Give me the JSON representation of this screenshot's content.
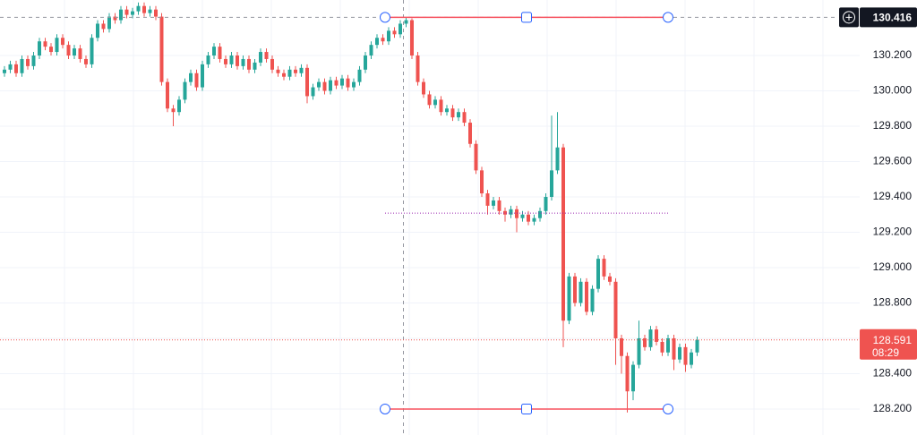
{
  "chart_data": {
    "type": "candlestick",
    "up_color": "#26a69a",
    "down_color": "#ef5350",
    "grid": true,
    "ylim": [
      128.053,
      130.514
    ],
    "yticks": [
      {
        "value": 128.2,
        "label": "128.200"
      },
      {
        "value": 128.4,
        "label": "128.400"
      },
      {
        "value": 128.6,
        "label": "128.600"
      },
      {
        "value": 128.8,
        "label": "128.800"
      },
      {
        "value": 129.0,
        "label": "129.000"
      },
      {
        "value": 129.2,
        "label": "129.200"
      },
      {
        "value": 129.4,
        "label": "129.400"
      },
      {
        "value": 129.6,
        "label": "129.600"
      },
      {
        "value": 129.8,
        "label": "129.800"
      },
      {
        "value": 130.0,
        "label": "130.000"
      },
      {
        "value": 130.2,
        "label": "130.200"
      }
    ],
    "crosshair_price": 130.416,
    "range_low": 128.2,
    "countdown": "08:29",
    "open": [
      130.1,
      130.12,
      130.15,
      130.1,
      130.18,
      130.14,
      130.2,
      130.28,
      130.25,
      130.22,
      130.3,
      130.26,
      130.2,
      130.24,
      130.18,
      130.15,
      130.3,
      130.38,
      130.35,
      130.42,
      130.4,
      130.46,
      130.43,
      130.45,
      130.48,
      130.44,
      130.46,
      130.42,
      130.05,
      129.9,
      129.88,
      129.95,
      130.05,
      130.1,
      130.02,
      130.15,
      130.2,
      130.25,
      130.18,
      130.15,
      130.2,
      130.14,
      130.18,
      130.12,
      130.16,
      130.22,
      130.18,
      130.12,
      130.1,
      130.08,
      130.12,
      130.1,
      130.13,
      129.97,
      130.02,
      130.05,
      130.0,
      130.06,
      130.03,
      130.07,
      130.02,
      130.05,
      130.12,
      130.2,
      130.26,
      130.3,
      130.28,
      130.34,
      130.32,
      130.38,
      130.4,
      130.2,
      130.05,
      129.98,
      129.92,
      129.95,
      129.88,
      129.9,
      129.85,
      129.88,
      129.82,
      129.7,
      129.55,
      129.42,
      129.35,
      129.38,
      129.32,
      129.3,
      129.33,
      129.28,
      129.3,
      129.26,
      129.28,
      129.32,
      129.4,
      129.55,
      129.68,
      128.7,
      128.95,
      128.8,
      128.92,
      128.75,
      128.88,
      129.05,
      128.95,
      128.92,
      128.6,
      128.5,
      128.3,
      128.45,
      128.6,
      128.55,
      128.65,
      128.58,
      128.52,
      128.6,
      128.48,
      128.55,
      128.45,
      128.52
    ],
    "high": [
      130.14,
      130.17,
      130.17,
      130.2,
      130.2,
      130.22,
      130.3,
      130.3,
      130.27,
      130.32,
      130.32,
      130.28,
      130.26,
      130.26,
      130.2,
      130.32,
      130.4,
      130.4,
      130.44,
      130.44,
      130.48,
      130.48,
      130.47,
      130.5,
      130.5,
      130.48,
      130.48,
      130.44,
      130.07,
      129.92,
      129.97,
      130.07,
      130.12,
      130.12,
      130.17,
      130.22,
      130.27,
      130.27,
      130.2,
      130.22,
      130.22,
      130.2,
      130.2,
      130.18,
      130.24,
      130.24,
      130.2,
      130.14,
      130.12,
      130.14,
      130.14,
      130.15,
      130.15,
      130.04,
      130.07,
      130.07,
      130.08,
      130.08,
      130.09,
      130.09,
      130.07,
      130.14,
      130.22,
      130.28,
      130.32,
      130.32,
      130.36,
      130.36,
      130.4,
      130.416,
      130.41,
      130.22,
      130.07,
      130.0,
      129.97,
      129.97,
      129.92,
      129.92,
      129.9,
      129.9,
      129.84,
      129.72,
      129.57,
      129.44,
      129.4,
      129.4,
      129.34,
      129.35,
      129.35,
      129.32,
      129.32,
      129.3,
      129.34,
      129.42,
      129.86,
      129.88,
      129.7,
      128.97,
      128.97,
      128.94,
      128.94,
      128.9,
      129.07,
      129.07,
      128.97,
      128.94,
      128.62,
      128.52,
      128.47,
      128.7,
      128.62,
      128.67,
      128.67,
      128.6,
      128.62,
      128.62,
      128.57,
      128.57,
      128.54,
      128.61
    ],
    "low": [
      130.08,
      130.1,
      130.08,
      130.08,
      130.12,
      130.12,
      130.18,
      130.23,
      130.2,
      130.2,
      130.24,
      130.18,
      130.18,
      130.16,
      130.13,
      130.13,
      130.28,
      130.33,
      130.33,
      130.38,
      130.38,
      130.41,
      130.41,
      130.43,
      130.42,
      130.42,
      130.4,
      130.03,
      129.88,
      129.8,
      129.86,
      129.93,
      130.03,
      130.0,
      130.0,
      130.13,
      130.18,
      130.16,
      130.13,
      130.13,
      130.12,
      130.12,
      130.1,
      130.1,
      130.14,
      130.16,
      130.1,
      130.08,
      130.06,
      130.06,
      130.08,
      130.08,
      129.93,
      129.95,
      130.0,
      129.98,
      129.98,
      130.01,
      130.01,
      130.0,
      130.0,
      130.03,
      130.1,
      130.18,
      130.24,
      130.26,
      130.26,
      130.3,
      130.3,
      130.36,
      130.18,
      130.03,
      129.96,
      129.9,
      129.9,
      129.86,
      129.86,
      129.83,
      129.83,
      129.8,
      129.68,
      129.53,
      129.4,
      129.3,
      129.33,
      129.3,
      129.26,
      129.28,
      129.2,
      129.26,
      129.24,
      129.24,
      129.26,
      129.3,
      129.38,
      129.53,
      128.55,
      128.68,
      128.78,
      128.78,
      128.73,
      128.73,
      128.86,
      128.93,
      128.9,
      128.45,
      128.4,
      128.18,
      128.25,
      128.43,
      128.53,
      128.53,
      128.56,
      128.5,
      128.5,
      128.42,
      128.46,
      128.41,
      128.43,
      128.5
    ],
    "close": [
      130.12,
      130.15,
      130.1,
      130.18,
      130.14,
      130.2,
      130.28,
      130.25,
      130.22,
      130.3,
      130.26,
      130.2,
      130.24,
      130.18,
      130.15,
      130.3,
      130.38,
      130.35,
      130.42,
      130.4,
      130.46,
      130.43,
      130.45,
      130.48,
      130.44,
      130.46,
      130.42,
      130.05,
      129.9,
      129.88,
      129.95,
      130.05,
      130.1,
      130.02,
      130.15,
      130.2,
      130.25,
      130.18,
      130.15,
      130.2,
      130.14,
      130.18,
      130.12,
      130.16,
      130.22,
      130.18,
      130.12,
      130.1,
      130.08,
      130.12,
      130.1,
      130.13,
      129.97,
      130.02,
      130.05,
      130.0,
      130.06,
      130.03,
      130.07,
      130.02,
      130.05,
      130.12,
      130.2,
      130.26,
      130.3,
      130.28,
      130.34,
      130.32,
      130.38,
      130.4,
      130.2,
      130.05,
      129.98,
      129.92,
      129.95,
      129.88,
      129.9,
      129.85,
      129.88,
      129.82,
      129.7,
      129.55,
      129.42,
      129.35,
      129.38,
      129.32,
      129.3,
      129.33,
      129.28,
      129.3,
      129.26,
      129.28,
      129.32,
      129.4,
      129.55,
      129.68,
      128.7,
      128.95,
      128.8,
      128.92,
      128.75,
      128.88,
      129.05,
      128.95,
      128.92,
      128.6,
      128.5,
      128.3,
      128.45,
      128.6,
      128.55,
      128.65,
      128.58,
      128.52,
      128.6,
      128.48,
      128.55,
      128.45,
      128.52,
      128.591
    ]
  }
}
